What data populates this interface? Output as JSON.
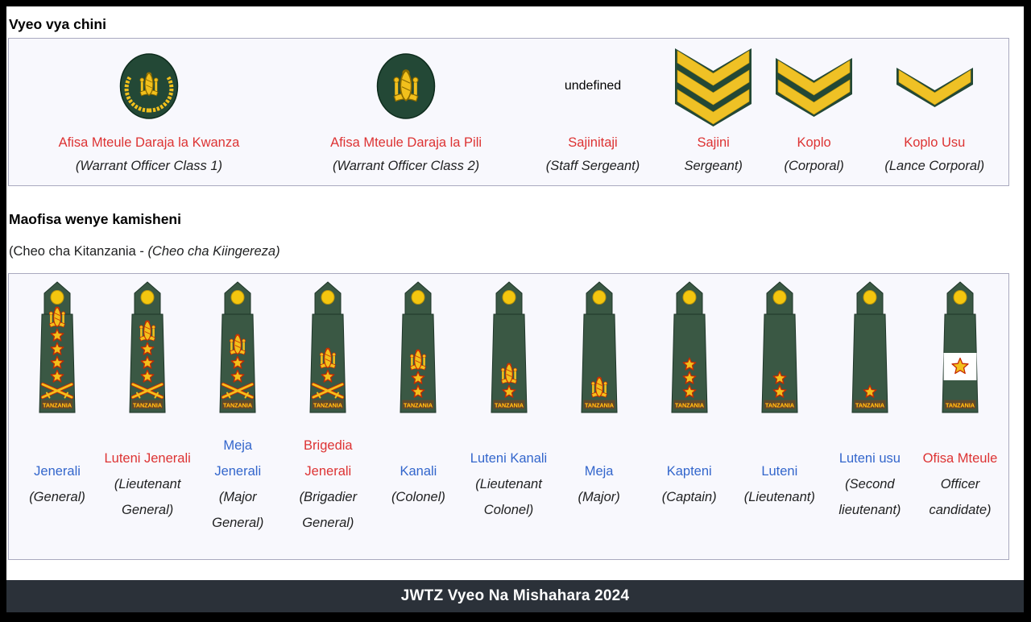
{
  "header": {
    "section1_title": "Vyeo vya chini",
    "section2_title": "Maofisa wenye kamisheni",
    "subtitle_plain": "(Cheo cha Kitanzania - ",
    "subtitle_italic": "(Cheo cha Kiingereza)"
  },
  "footer": {
    "title": "JWTZ Vyeo Na Mishahara 2024"
  },
  "colors": {
    "link_blue": "#3366cc",
    "link_red": "#dd3333",
    "gold": "#f2c01c",
    "chevron_gold": "#efc125",
    "green_badge": "#234836",
    "green_epaulette": "#3a5844",
    "insignia_red": "#c62a00",
    "footer_bg": "#2b3139",
    "box_bg": "#f8f8fd",
    "box_border": "#a9a9bf"
  },
  "lower_ranks": {
    "items": [
      {
        "name": "Afisa Mteule Daraja la Kwanza",
        "link_color": "red",
        "english": "(Warrant Officer Class 1)",
        "badge": "wo1-wreath-arms-oval"
      },
      {
        "name": "Afisa Mteule Daraja la Pili",
        "link_color": "red",
        "english": "(Warrant Officer Class 2)",
        "badge": "wo2-arms-oval"
      },
      {
        "name": "Sajinitaji",
        "link_color": "red",
        "english": "(Staff Sergeant)",
        "badge": "shield-arms-3-chevrons"
      },
      {
        "name": "Sajini",
        "link_color": "red",
        "english": "Sergeant)",
        "badge": "chevrons-3"
      },
      {
        "name": "Koplo",
        "link_color": "red",
        "english": "(Corporal)",
        "badge": "chevrons-2"
      },
      {
        "name": "Koplo Usu",
        "link_color": "red",
        "english": "(Lance Corporal)",
        "badge": "chevrons-1"
      }
    ]
  },
  "officers": {
    "epaulette_text": "TANZANIA",
    "items": [
      {
        "name_lines": [
          "Jenerali"
        ],
        "link_color": "blue",
        "english_lines": [
          "(General)"
        ],
        "insignia": {
          "coat": true,
          "stars": 4,
          "swords": true,
          "band": false
        }
      },
      {
        "name_lines": [
          "Luteni Jenerali"
        ],
        "link_color": "red",
        "english_lines": [
          "(Lieutenant",
          "General)"
        ],
        "insignia": {
          "coat": true,
          "stars": 3,
          "swords": true,
          "band": false
        }
      },
      {
        "name_lines": [
          "Meja",
          "Jenerali"
        ],
        "link_color": "blue",
        "english_lines": [
          "(Major",
          "General)"
        ],
        "insignia": {
          "coat": true,
          "stars": 2,
          "swords": true,
          "band": false
        }
      },
      {
        "name_lines": [
          "Brigedia",
          "Jenerali"
        ],
        "link_color": "red",
        "english_lines": [
          "(Brigadier",
          "General)"
        ],
        "insignia": {
          "coat": true,
          "stars": 1,
          "swords": true,
          "band": false
        }
      },
      {
        "name_lines": [
          "Kanali"
        ],
        "link_color": "blue",
        "english_lines": [
          "(Colonel)"
        ],
        "insignia": {
          "coat": true,
          "stars": 2,
          "swords": false,
          "band": false
        }
      },
      {
        "name_lines": [
          "Luteni Kanali"
        ],
        "link_color": "blue",
        "english_lines": [
          "(Lieutenant",
          "Colonel)"
        ],
        "insignia": {
          "coat": true,
          "stars": 1,
          "swords": false,
          "band": false
        }
      },
      {
        "name_lines": [
          "Meja"
        ],
        "link_color": "blue",
        "english_lines": [
          "(Major)"
        ],
        "insignia": {
          "coat": true,
          "stars": 0,
          "swords": false,
          "band": false
        }
      },
      {
        "name_lines": [
          "Kapteni"
        ],
        "link_color": "blue",
        "english_lines": [
          "(Captain)"
        ],
        "insignia": {
          "coat": false,
          "stars": 3,
          "swords": false,
          "band": false
        }
      },
      {
        "name_lines": [
          "Luteni"
        ],
        "link_color": "blue",
        "english_lines": [
          "(Lieutenant)"
        ],
        "insignia": {
          "coat": false,
          "stars": 2,
          "swords": false,
          "band": false
        }
      },
      {
        "name_lines": [
          "Luteni usu"
        ],
        "link_color": "blue",
        "english_lines": [
          "(Second",
          "lieutenant)"
        ],
        "insignia": {
          "coat": false,
          "stars": 1,
          "swords": false,
          "band": false
        }
      },
      {
        "name_lines": [
          "Ofisa Mteule"
        ],
        "link_color": "red",
        "english_lines": [
          "Officer",
          "candidate)"
        ],
        "insignia": {
          "coat": false,
          "stars": 1,
          "swords": false,
          "band": true
        }
      }
    ]
  }
}
